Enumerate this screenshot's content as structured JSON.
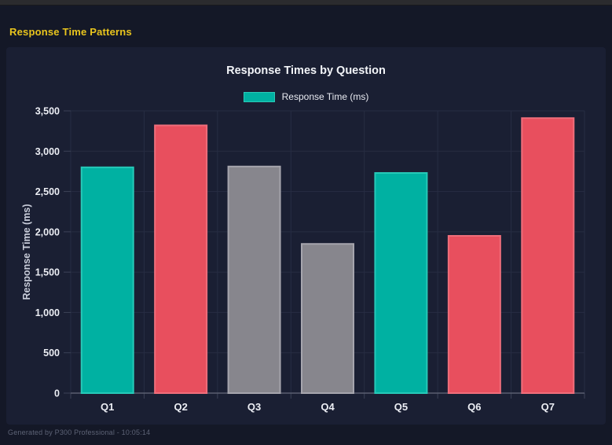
{
  "page": {
    "header_title": "Response Time Patterns",
    "footer_text": "Generated by P300 Professional - 10:05:14"
  },
  "colors": {
    "accent_yellow": "#e9c51d",
    "page_bg": "#141827",
    "card_bg": "#1a1f33",
    "grid": "#272d43",
    "axis": "#5a5f71",
    "tick": "#3c4257",
    "text_primary": "#eceef4",
    "text_axis_title": "#c9cdda",
    "text_muted": "#5d6376",
    "teal": "#00b1a2",
    "red": "#e84f5e",
    "gray": "#87868d"
  },
  "chart_data": {
    "type": "bar",
    "title": "Response Times by Question",
    "legend": {
      "position": "top",
      "entries": [
        {
          "label": "Response Time (ms)",
          "color": "#00b1a2"
        }
      ]
    },
    "categories": [
      "Q1",
      "Q2",
      "Q3",
      "Q4",
      "Q5",
      "Q6",
      "Q7"
    ],
    "series": [
      {
        "name": "Response Time (ms)",
        "values": [
          2800,
          3320,
          2810,
          1850,
          2730,
          1950,
          3410
        ]
      }
    ],
    "bar_colors": [
      "#00b1a2",
      "#e84f5e",
      "#87868d",
      "#87868d",
      "#00b1a2",
      "#e84f5e",
      "#e84f5e"
    ],
    "bar_border_colors": [
      "#27c9b8",
      "#ef6e7b",
      "#a6a5ad",
      "#a6a5ad",
      "#27c9b8",
      "#ef6e7b",
      "#ef6e7b"
    ],
    "xlabel": "",
    "ylabel": "Response Time (ms)",
    "ylim": [
      0,
      3500
    ],
    "ytick_step": 500,
    "ytick_labels": [
      "0",
      "500",
      "1,000",
      "1,500",
      "2,000",
      "2,500",
      "3,000",
      "3,500"
    ],
    "grid": true
  }
}
